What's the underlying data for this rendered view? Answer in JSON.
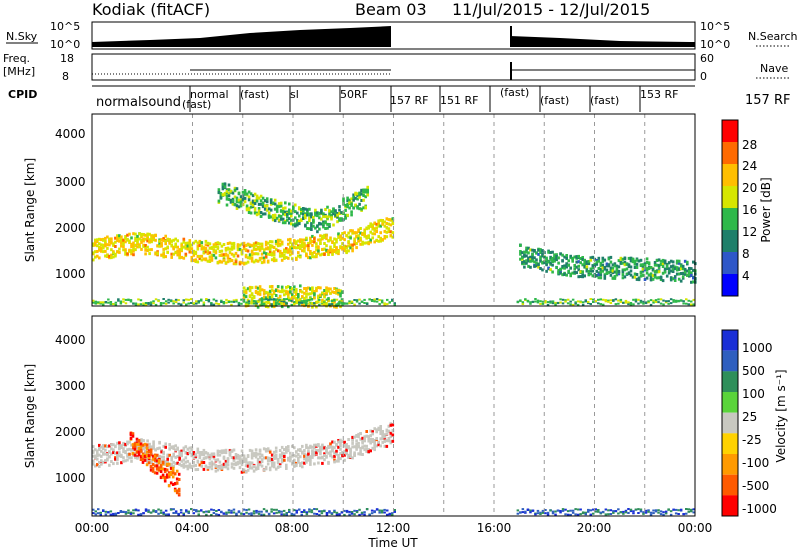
{
  "header": {
    "station": "Kodiak (fitACF)",
    "beam": "Beam 03",
    "date_range": "11/Jul/2015 - 12/Jul/2015"
  },
  "strips": {
    "nsky_label": "N.Sky",
    "nsky_ticks": [
      "10^5",
      "10^0"
    ],
    "nsearch_label": "N.Search",
    "nsearch_ticks": [
      "10^5",
      "10^0"
    ],
    "freq_label_1": "Freq.",
    "freq_label_2": "[MHz]",
    "freq_ticks": [
      "18",
      "8"
    ],
    "nave_label": "Nave",
    "nave_ticks": [
      "60",
      "0"
    ],
    "cpid_label": "CPID",
    "cpid_text_left": "normalsound",
    "cpid_text_right": "157 RF"
  },
  "axes": {
    "x_ticks": [
      "00:00",
      "04:00",
      "08:00",
      "12:00",
      "16:00",
      "20:00",
      "00:00"
    ],
    "x_title": "Time UT",
    "y_ticks": [
      "4000",
      "3000",
      "2000",
      "1000"
    ],
    "y_title": "Slant Range [km]"
  },
  "colorbars": {
    "power": {
      "title": "Power [dB]",
      "labels": [
        "28",
        "24",
        "20",
        "16",
        "12",
        "8",
        "4"
      ],
      "colors": [
        "#ff0000",
        "#ff6a00",
        "#ffbf00",
        "#d6e600",
        "#2fb84a",
        "#1f7f6a",
        "#2f57c8",
        "#0000ff"
      ]
    },
    "velocity": {
      "title": "Velocity [m s⁻¹]",
      "labels": [
        "1000",
        "500",
        "100",
        "25",
        "-25",
        "-100",
        "-500",
        "-1000"
      ],
      "colors": [
        "#1a2fd6",
        "#2f5fbf",
        "#2f8f5a",
        "#5ad43a",
        "#c8c8c0",
        "#ffd200",
        "#ff9a00",
        "#ff5a00",
        "#ff0000"
      ]
    }
  },
  "chart_data": [
    {
      "type": "heatmap",
      "title": "Power [dB]",
      "xlabel": "Time UT",
      "ylabel": "Slant Range [km]",
      "x_range_hours": [
        0,
        24
      ],
      "ylim": [
        180,
        4700
      ],
      "color_scale": [
        4,
        28
      ],
      "data_gap_hours": [
        12.0,
        16.8
      ],
      "features": [
        {
          "name": "main band",
          "x": [
            0,
            2,
            4,
            6,
            8,
            10,
            12
          ],
          "y": [
            1550,
            1700,
            1500,
            1450,
            1550,
            1700,
            2100
          ],
          "value": 18
        },
        {
          "name": "upper patches",
          "x": [
            5,
            7,
            9,
            11
          ],
          "y": [
            2900,
            2500,
            2200,
            2800
          ],
          "value": 12
        },
        {
          "name": "near range band",
          "x": [
            6,
            8,
            10
          ],
          "y": [
            420,
            450,
            380
          ],
          "value": 16
        },
        {
          "name": "second session band",
          "x": [
            17,
            19,
            21,
            23,
            24
          ],
          "y": [
            1400,
            1150,
            1100,
            1050,
            1000
          ],
          "value": 10
        }
      ]
    },
    {
      "type": "heatmap",
      "title": "Velocity [m s⁻¹]",
      "xlabel": "Time UT",
      "ylabel": "Slant Range [km]",
      "x_range_hours": [
        0,
        24
      ],
      "ylim": [
        180,
        4700
      ],
      "color_scale": [
        -1000,
        1000
      ],
      "data_gap_hours": [
        12.0,
        16.8
      ],
      "features": [
        {
          "name": "ground scatter band",
          "x": [
            0,
            2,
            4,
            6,
            8,
            10,
            12
          ],
          "y": [
            1550,
            1700,
            1500,
            1450,
            1550,
            1700,
            2100
          ],
          "value": 0
        },
        {
          "name": "negative velocity patch",
          "x": [
            1.5,
            2.5,
            3.5
          ],
          "y": [
            1900,
            1400,
            900
          ],
          "value": -500
        }
      ]
    }
  ]
}
